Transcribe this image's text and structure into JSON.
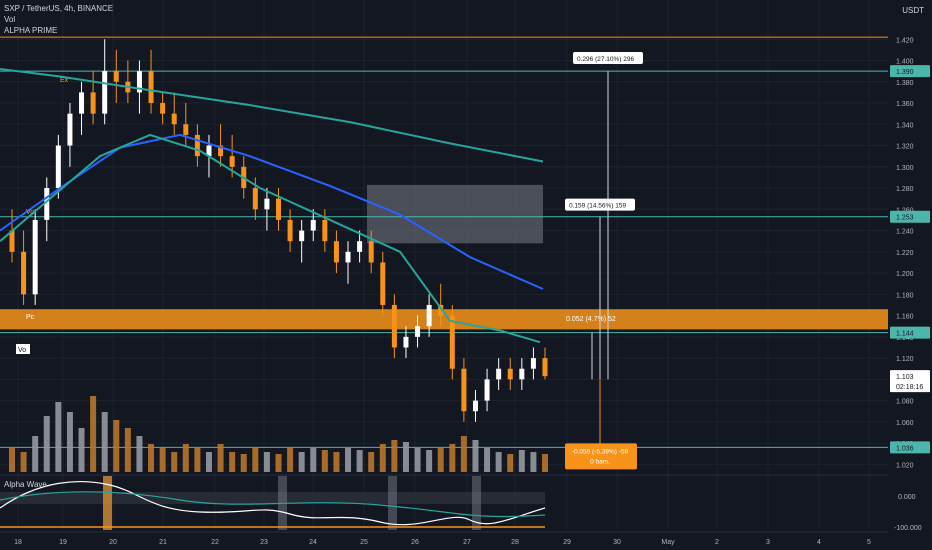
{
  "header": {
    "symbol_line": "SXP / TetherUS, 4h, BINANCE",
    "indicators": [
      "Vol",
      "ALPHA PRIME"
    ],
    "currency": "USDT"
  },
  "lower_pane": {
    "title": "Alpha Wave",
    "ticks": [
      "0.000",
      "-100.000"
    ]
  },
  "colors": {
    "bg": "#131722",
    "grid": "#1e222d",
    "bull": "#ffffff",
    "bear": "#f7931a",
    "ema_fast": "#26a69a",
    "ema_mid": "#2962ff",
    "ema_slow": "#26a69a",
    "orange_zone": "#f7931a",
    "level_line": "#4db6ac"
  },
  "chart_data": {
    "type": "candlestick",
    "y_axis": {
      "min": 1.01,
      "max": 1.44,
      "ticks": [
        "1.420",
        "1.400",
        "1.380",
        "1.360",
        "1.340",
        "1.320",
        "1.300",
        "1.280",
        "1.260",
        "1.240",
        "1.220",
        "1.200",
        "1.180",
        "1.160",
        "1.140",
        "1.120",
        "1.100",
        "1.080",
        "1.060",
        "1.040",
        "1.020"
      ]
    },
    "x_axis": {
      "ticks": [
        "18",
        "19",
        "20",
        "21",
        "22",
        "23",
        "24",
        "25",
        "26",
        "27",
        "28",
        "29",
        "30",
        "May",
        "2",
        "3",
        "4",
        "5"
      ]
    },
    "price_labels": [
      {
        "value": 1.39,
        "text": "1.390",
        "color": "#4db6ac"
      },
      {
        "value": 1.253,
        "text": "1.253",
        "color": "#4db6ac"
      },
      {
        "value": 1.144,
        "text": "1.144",
        "color": "#4db6ac"
      },
      {
        "value": 1.103,
        "text": "1.103\n02:18:16",
        "color": "#ffffff"
      },
      {
        "value": 1.036,
        "text": "1.036",
        "color": "#4db6ac"
      }
    ],
    "horizontal_lines": [
      {
        "value": 1.422,
        "color": "#f7931a"
      },
      {
        "value": 1.39,
        "color": "#4db6ac"
      },
      {
        "value": 1.253,
        "color": "#4db6ac"
      },
      {
        "value": 1.144,
        "color": "#4db6ac"
      },
      {
        "value": 1.036,
        "color": "#4db6ac"
      }
    ],
    "orange_zone": {
      "from": 1.147,
      "to": 1.166,
      "labels": [
        "Pc",
        "0.052 (4.7%) 52"
      ]
    },
    "grey_box": {
      "from": 1.228,
      "to": 1.283
    },
    "targets": [
      {
        "text": "0.296 (27.10%) 296",
        "value": 1.392
      },
      {
        "text": "0.159 (14.56%) 159",
        "value": 1.255
      },
      {
        "text": "-0.059 (-5.39%) -59\n0 bars,",
        "value": 1.036
      }
    ],
    "markers": [
      "Ex",
      "Vo",
      "Vo"
    ],
    "candles": [
      [
        1.24,
        1.26,
        1.21,
        1.22
      ],
      [
        1.22,
        1.24,
        1.17,
        1.18
      ],
      [
        1.18,
        1.26,
        1.17,
        1.25
      ],
      [
        1.25,
        1.29,
        1.23,
        1.28
      ],
      [
        1.28,
        1.33,
        1.27,
        1.32
      ],
      [
        1.32,
        1.36,
        1.3,
        1.35
      ],
      [
        1.35,
        1.38,
        1.33,
        1.37
      ],
      [
        1.37,
        1.39,
        1.34,
        1.35
      ],
      [
        1.35,
        1.42,
        1.34,
        1.39
      ],
      [
        1.39,
        1.41,
        1.36,
        1.38
      ],
      [
        1.38,
        1.4,
        1.36,
        1.37
      ],
      [
        1.37,
        1.4,
        1.35,
        1.39
      ],
      [
        1.39,
        1.41,
        1.35,
        1.36
      ],
      [
        1.36,
        1.37,
        1.34,
        1.35
      ],
      [
        1.35,
        1.37,
        1.33,
        1.34
      ],
      [
        1.34,
        1.36,
        1.32,
        1.33
      ],
      [
        1.33,
        1.34,
        1.3,
        1.31
      ],
      [
        1.31,
        1.33,
        1.29,
        1.32
      ],
      [
        1.32,
        1.34,
        1.3,
        1.31
      ],
      [
        1.31,
        1.33,
        1.29,
        1.3
      ],
      [
        1.3,
        1.31,
        1.27,
        1.28
      ],
      [
        1.28,
        1.29,
        1.25,
        1.26
      ],
      [
        1.26,
        1.28,
        1.24,
        1.27
      ],
      [
        1.27,
        1.28,
        1.24,
        1.25
      ],
      [
        1.25,
        1.26,
        1.22,
        1.23
      ],
      [
        1.23,
        1.25,
        1.21,
        1.24
      ],
      [
        1.24,
        1.26,
        1.23,
        1.25
      ],
      [
        1.25,
        1.26,
        1.22,
        1.23
      ],
      [
        1.23,
        1.24,
        1.2,
        1.21
      ],
      [
        1.21,
        1.23,
        1.19,
        1.22
      ],
      [
        1.22,
        1.24,
        1.21,
        1.23
      ],
      [
        1.23,
        1.24,
        1.2,
        1.21
      ],
      [
        1.21,
        1.22,
        1.16,
        1.17
      ],
      [
        1.17,
        1.18,
        1.12,
        1.13
      ],
      [
        1.13,
        1.15,
        1.12,
        1.14
      ],
      [
        1.14,
        1.16,
        1.13,
        1.15
      ],
      [
        1.15,
        1.18,
        1.14,
        1.17
      ],
      [
        1.17,
        1.19,
        1.15,
        1.16
      ],
      [
        1.16,
        1.17,
        1.1,
        1.11
      ],
      [
        1.11,
        1.12,
        1.06,
        1.07
      ],
      [
        1.07,
        1.09,
        1.06,
        1.08
      ],
      [
        1.08,
        1.11,
        1.07,
        1.1
      ],
      [
        1.1,
        1.12,
        1.09,
        1.11
      ],
      [
        1.11,
        1.12,
        1.09,
        1.1
      ],
      [
        1.1,
        1.12,
        1.09,
        1.11
      ],
      [
        1.11,
        1.13,
        1.1,
        1.12
      ],
      [
        1.12,
        1.13,
        1.1,
        1.103
      ]
    ],
    "volume": [
      12,
      10,
      18,
      28,
      35,
      30,
      22,
      38,
      30,
      26,
      22,
      18,
      14,
      12,
      10,
      14,
      12,
      10,
      14,
      10,
      9,
      12,
      10,
      9,
      12,
      10,
      12,
      11,
      10,
      12,
      11,
      10,
      14,
      16,
      15,
      12,
      11,
      12,
      14,
      18,
      16,
      12,
      10,
      9,
      11,
      10,
      9
    ]
  }
}
